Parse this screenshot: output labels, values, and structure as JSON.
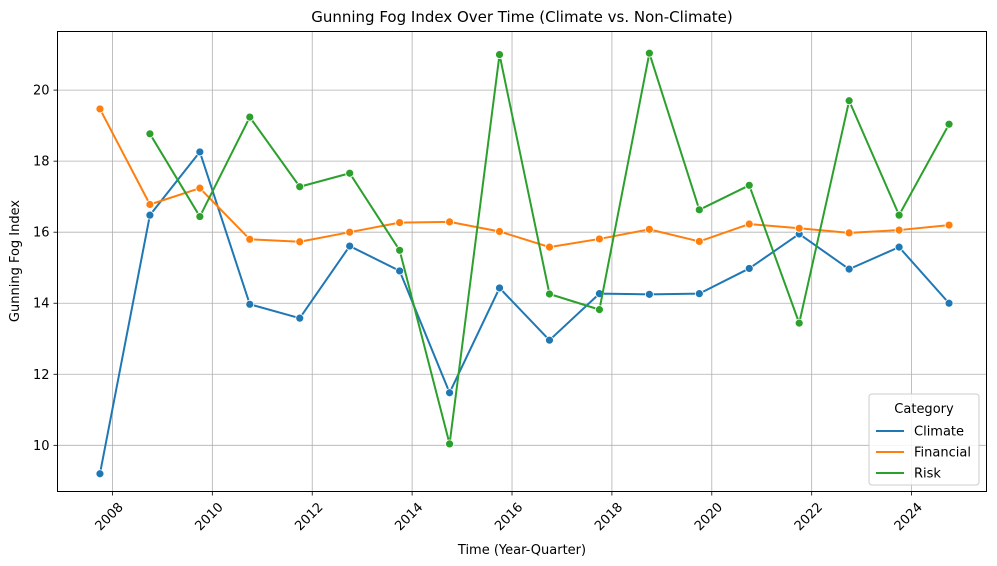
{
  "chart_data": {
    "type": "line",
    "title": "Gunning Fog Index Over Time (Climate vs. Non-Climate)",
    "xlabel": "Time (Year-Quarter)",
    "ylabel": "Gunning Fog Index",
    "x_ticks": [
      "2008",
      "2010",
      "2012",
      "2014",
      "2016",
      "2018",
      "2020",
      "2022",
      "2024"
    ],
    "y_ticks": [
      "10",
      "12",
      "14",
      "16",
      "18",
      "20"
    ],
    "xlim": [
      2006.9,
      2025.5
    ],
    "ylim": [
      8.7,
      21.65
    ],
    "grid": true,
    "legend_title": "Category",
    "legend_position": "lower-right",
    "series": [
      {
        "name": "Climate",
        "color": "#1f77b4",
        "x": [
          2007.75,
          2008.75,
          2009.75,
          2010.75,
          2011.75,
          2012.75,
          2013.75,
          2014.75,
          2015.75,
          2016.75,
          2017.75,
          2018.75,
          2019.75,
          2020.75,
          2021.75,
          2022.75,
          2023.75,
          2024.75
        ],
        "y": [
          9.2,
          16.48,
          18.26,
          13.97,
          13.58,
          15.61,
          14.91,
          11.48,
          14.43,
          12.96,
          14.27,
          14.25,
          14.27,
          14.98,
          15.95,
          14.96,
          15.58,
          14.0
        ]
      },
      {
        "name": "Financial",
        "color": "#ff7f0e",
        "x": [
          2007.75,
          2008.75,
          2009.75,
          2010.75,
          2011.75,
          2012.75,
          2013.75,
          2014.75,
          2015.75,
          2016.75,
          2017.75,
          2018.75,
          2019.75,
          2020.75,
          2021.75,
          2022.75,
          2023.75,
          2024.75
        ],
        "y": [
          19.47,
          16.78,
          17.24,
          15.8,
          15.73,
          16.0,
          16.27,
          16.29,
          16.02,
          15.58,
          15.81,
          16.08,
          15.74,
          16.23,
          16.11,
          15.98,
          16.06,
          16.2
        ]
      },
      {
        "name": "Risk",
        "color": "#2ca02c",
        "x": [
          2008.75,
          2009.75,
          2010.75,
          2011.75,
          2012.75,
          2013.75,
          2014.75,
          2015.75,
          2016.75,
          2017.75,
          2018.75,
          2019.75,
          2020.75,
          2021.75,
          2022.75,
          2023.75,
          2024.75
        ],
        "y": [
          18.77,
          16.44,
          19.24,
          17.28,
          17.66,
          15.49,
          10.04,
          21.0,
          14.26,
          13.82,
          21.04,
          16.63,
          17.32,
          13.44,
          19.7,
          16.48,
          19.04
        ]
      }
    ]
  }
}
